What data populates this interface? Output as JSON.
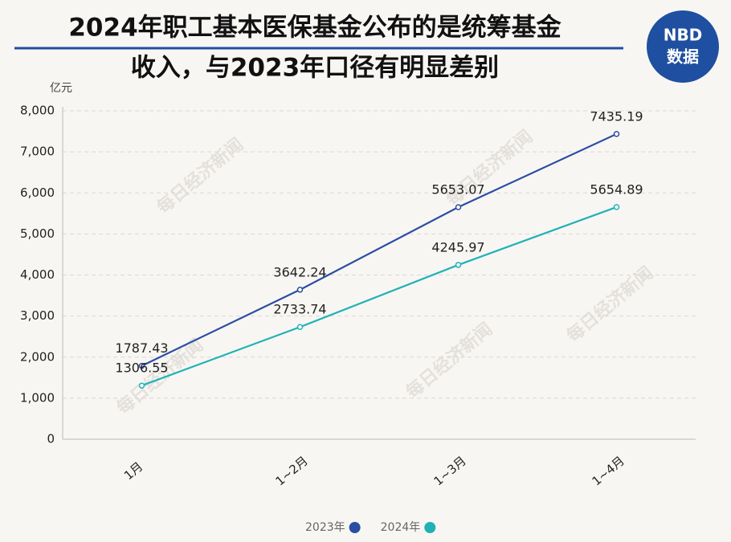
{
  "chart_data": {
    "type": "line",
    "title": [
      "2024年职工基本医保基金公布的是统筹基金",
      "收入，与2023年口径有明显差别"
    ],
    "logo": [
      "NBD",
      "数据"
    ],
    "y_label": "亿元",
    "watermark": "每日经济新闻",
    "categories": [
      "1月",
      "1~2月",
      "1~3月",
      "1~4月"
    ],
    "series": [
      {
        "name": "2023年",
        "color": "#2b4ea3",
        "values": [
          1787.43,
          3642.24,
          5653.07,
          7435.19
        ]
      },
      {
        "name": "2024年",
        "color": "#1fb2b5",
        "values": [
          1306.55,
          2733.74,
          4245.97,
          5654.89
        ]
      }
    ],
    "ylim": [
      0,
      8000
    ],
    "yticks": [
      0,
      {
        "value": 1000,
        "label": "1,000"
      },
      {
        "value": 2000,
        "label": "2,000"
      },
      {
        "value": 3000,
        "label": "3,000"
      },
      {
        "value": 4000,
        "label": "4,000"
      },
      {
        "value": 5000,
        "label": "5,000"
      },
      {
        "value": 6000,
        "label": "6,000"
      },
      {
        "value": 7000,
        "label": "7,000"
      },
      {
        "value": 8000,
        "label": "8,000"
      }
    ],
    "grid": true
  }
}
